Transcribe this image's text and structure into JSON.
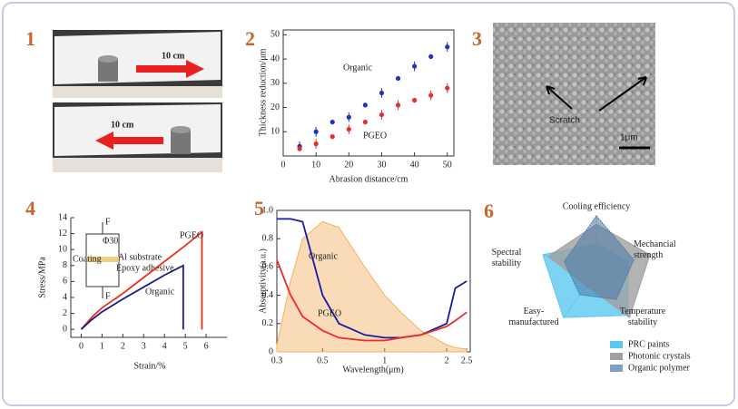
{
  "panel_labels": [
    "1",
    "2",
    "3",
    "4",
    "5",
    "6"
  ],
  "photos": [
    {
      "text": "10 cm"
    },
    {
      "text": "10 cm"
    }
  ],
  "sem": {
    "label": "Scratch",
    "scale": "1μm"
  },
  "chart_data": [
    {
      "type": "scatter",
      "x_label": "Abrasion distance/cm",
      "y_label": "Thickness reduction/μm",
      "x": [
        5,
        10,
        15,
        20,
        25,
        30,
        35,
        40,
        45,
        50
      ],
      "series": [
        {
          "name": "Organic",
          "color": "#2233bb",
          "values": [
            4,
            10,
            14,
            16,
            21,
            26,
            32,
            37,
            41,
            45
          ],
          "errors": [
            2,
            2,
            1,
            2,
            1,
            2,
            1,
            2,
            1,
            2
          ]
        },
        {
          "name": "PGEO",
          "color": "#e03030",
          "values": [
            3,
            5,
            8,
            11,
            14,
            17,
            21,
            23,
            25,
            28
          ],
          "errors": [
            1,
            2,
            1,
            2,
            1,
            2,
            2,
            1,
            2,
            2
          ]
        }
      ],
      "xlim": [
        0,
        52
      ],
      "xticks": [
        0,
        10,
        20,
        30,
        40,
        50
      ],
      "ylim": [
        0,
        52
      ],
      "yticks": [
        10,
        20,
        30,
        40,
        50
      ]
    },
    {
      "type": "line",
      "x_label": "Strain/%",
      "y_label": "Stress/MPa",
      "inset": [
        "F",
        "Φ30",
        "Coating",
        "Al substrate",
        "Epoxy adhesive",
        "F"
      ],
      "series": [
        {
          "name": "PGEO",
          "color": "#e8301c",
          "x": [
            0,
            0.5,
            1,
            2,
            3,
            4,
            5,
            5.8,
            5.8
          ],
          "values": [
            0,
            1.5,
            2.7,
            4.5,
            6.5,
            8.5,
            10.5,
            12.2,
            0
          ]
        },
        {
          "name": "Organic",
          "color": "#1a1a80",
          "x": [
            0,
            0.5,
            1,
            2,
            3,
            4,
            4.9,
            4.9
          ],
          "values": [
            0,
            1.2,
            2.2,
            3.8,
            5.3,
            6.8,
            8,
            0
          ]
        }
      ],
      "xlim": [
        -0.5,
        7
      ],
      "xticks": [
        0,
        1,
        2,
        3,
        4,
        5,
        6
      ],
      "ylim": [
        -1,
        14
      ],
      "yticks": [
        0,
        2,
        4,
        6,
        8,
        10,
        12,
        14
      ]
    },
    {
      "type": "line",
      "x_label": "Wavelength(μm)",
      "y_label": "Absorptivity(a.u.)",
      "xscale": "log",
      "x": [
        0.3,
        0.35,
        0.4,
        0.5,
        0.6,
        0.8,
        1,
        1.2,
        1.5,
        2,
        2.2,
        2.5
      ],
      "spectrum": {
        "color": "#f5b060",
        "values": [
          0.05,
          0.5,
          0.8,
          0.92,
          0.88,
          0.6,
          0.4,
          0.28,
          0.15,
          0.05,
          0.03,
          0.02
        ]
      },
      "series": [
        {
          "name": "Organic",
          "color": "#1a1aa0",
          "values": [
            0.94,
            0.94,
            0.92,
            0.4,
            0.2,
            0.12,
            0.1,
            0.1,
            0.12,
            0.2,
            0.45,
            0.5
          ]
        },
        {
          "name": "PGEO",
          "color": "#ee2a2a",
          "values": [
            0.65,
            0.4,
            0.25,
            0.15,
            0.1,
            0.08,
            0.08,
            0.1,
            0.12,
            0.18,
            0.22,
            0.28
          ]
        }
      ],
      "xlim": [
        0.3,
        2.6
      ],
      "xticks": [
        0.3,
        0.5,
        1,
        2,
        2.5
      ],
      "ylim": [
        0,
        1
      ],
      "yticks": [
        0,
        0.2,
        0.4,
        0.6,
        0.8,
        {
          "value": 1,
          "label": "1.0"
        }
      ]
    },
    {
      "type": "radar",
      "axes": [
        "Cooling efficiency",
        "Mechancial strength",
        "Temperature stability",
        "Easy-manufactured",
        "Spectral stability"
      ],
      "rlim": [
        0,
        1
      ],
      "series": [
        {
          "name": "PRC paints",
          "color": "#5bc8f0",
          "values": [
            0.5,
            0.6,
            0.95,
            1,
            1
          ]
        },
        {
          "name": "Photonic crystals",
          "color": "#a0a0a0",
          "values": [
            0.85,
            1,
            1,
            0.3,
            0.9
          ]
        },
        {
          "name": "Organic polymer",
          "color": "#4a78a8",
          "values": [
            1,
            0.7,
            0.6,
            0.5,
            0.6
          ]
        }
      ]
    }
  ]
}
